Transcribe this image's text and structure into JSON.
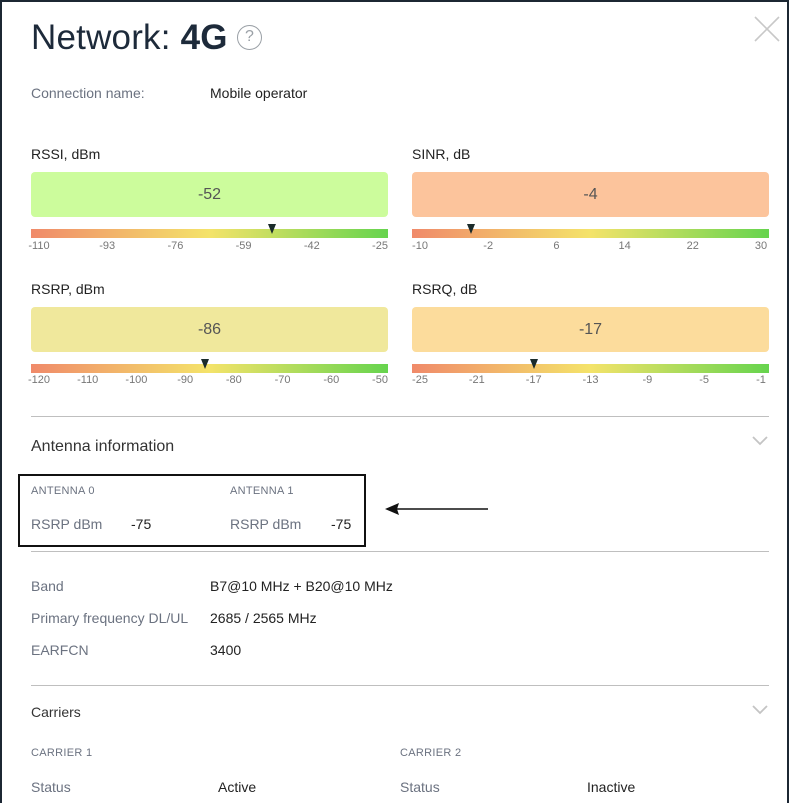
{
  "window": {
    "title_prefix": "Network:",
    "title_bold": "4G",
    "help_glyph": "?"
  },
  "connection": {
    "label": "Connection name:",
    "value": "Mobile operator"
  },
  "metrics": {
    "rssi": {
      "title": "RSSI, dBm",
      "value": "-52",
      "ticks": [
        "-110",
        "-93",
        "-76",
        "-59",
        "-42",
        "-25"
      ],
      "range": [
        -110,
        -25
      ],
      "reading": -52,
      "box_color": "#ccfc9c"
    },
    "sinr": {
      "title": "SINR, dB",
      "value": "-4",
      "ticks": [
        "-10",
        "-2",
        "6",
        "14",
        "22",
        "30"
      ],
      "range": [
        -10,
        30
      ],
      "reading": -4,
      "box_color": "#fcc49c"
    },
    "rsrp": {
      "title": "RSRP, dBm",
      "value": "-86",
      "ticks": [
        "-120",
        "-110",
        "-100",
        "-90",
        "-80",
        "-70",
        "-60",
        "-50"
      ],
      "range": [
        -120,
        -50
      ],
      "reading": -86,
      "box_color": "#f0e89c"
    },
    "rsrq": {
      "title": "RSRQ, dB",
      "value": "-17",
      "ticks": [
        "-25",
        "-21",
        "-17",
        "-13",
        "-9",
        "-5",
        "-1"
      ],
      "range": [
        -25,
        -1
      ],
      "reading": -17,
      "box_color": "#fcdc9c"
    }
  },
  "antenna": {
    "section_title": "Antenna information",
    "antennas": [
      {
        "name": "ANTENNA 0",
        "metric_label": "RSRP dBm",
        "metric_value": "-75"
      },
      {
        "name": "ANTENNA 1",
        "metric_label": "RSRP dBm",
        "metric_value": "-75"
      }
    ]
  },
  "details": [
    {
      "label": "Band",
      "value": "B7@10 MHz + B20@10 MHz"
    },
    {
      "label": "Primary frequency DL/UL",
      "value": "2685 / 2565 MHz"
    },
    {
      "label": "EARFCN",
      "value": "3400"
    }
  ],
  "carriers": {
    "section_title": "Carriers",
    "items": [
      {
        "name": "CARRIER 1",
        "status_label": "Status",
        "status_value": "Active"
      },
      {
        "name": "CARRIER 2",
        "status_label": "Status",
        "status_value": "Inactive"
      }
    ]
  },
  "colors": {
    "gradient_start": "#f08a6a",
    "gradient_mid": "#f4e36a",
    "gradient_end": "#66d44e",
    "title_color": "#1d2a3a"
  }
}
